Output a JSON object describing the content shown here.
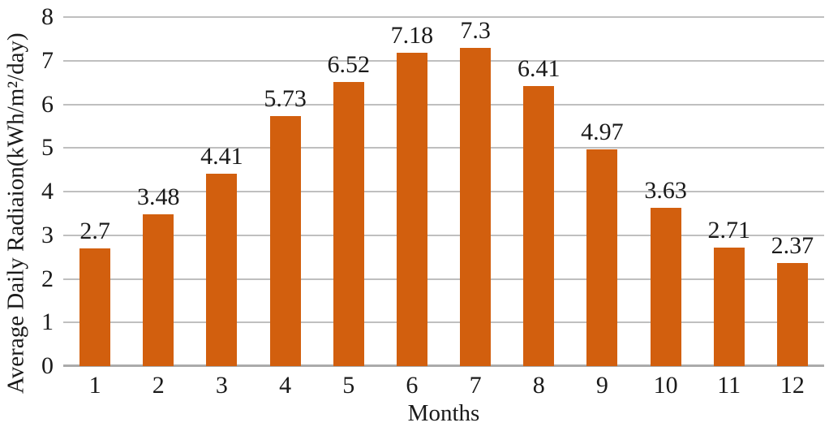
{
  "chart_data": {
    "type": "bar",
    "title": "",
    "categories": [
      "1",
      "2",
      "3",
      "4",
      "5",
      "6",
      "7",
      "8",
      "9",
      "10",
      "11",
      "12"
    ],
    "values": [
      2.7,
      3.48,
      4.41,
      5.73,
      6.52,
      7.18,
      7.3,
      6.41,
      4.97,
      3.63,
      2.71,
      2.37
    ],
    "value_labels": [
      "2.7",
      "3.48",
      "4.41",
      "5.73",
      "6.52",
      "7.18",
      "7.3",
      "6.41",
      "4.97",
      "3.63",
      "2.71",
      "2.37"
    ],
    "xlabel": "Months",
    "ylabel": "Average Daily Radiaion(kWh/m²/day)",
    "ylim": [
      0,
      8
    ],
    "ytick_interval": 1,
    "yticks": [
      "0",
      "1",
      "2",
      "3",
      "4",
      "5",
      "6",
      "7",
      "8"
    ],
    "grid": true,
    "legend": false,
    "colors": {
      "bar": "#d25f0e",
      "gridline": "#bfbfbf",
      "axis_line": "#ababab",
      "text": "#1a1a1a"
    }
  }
}
